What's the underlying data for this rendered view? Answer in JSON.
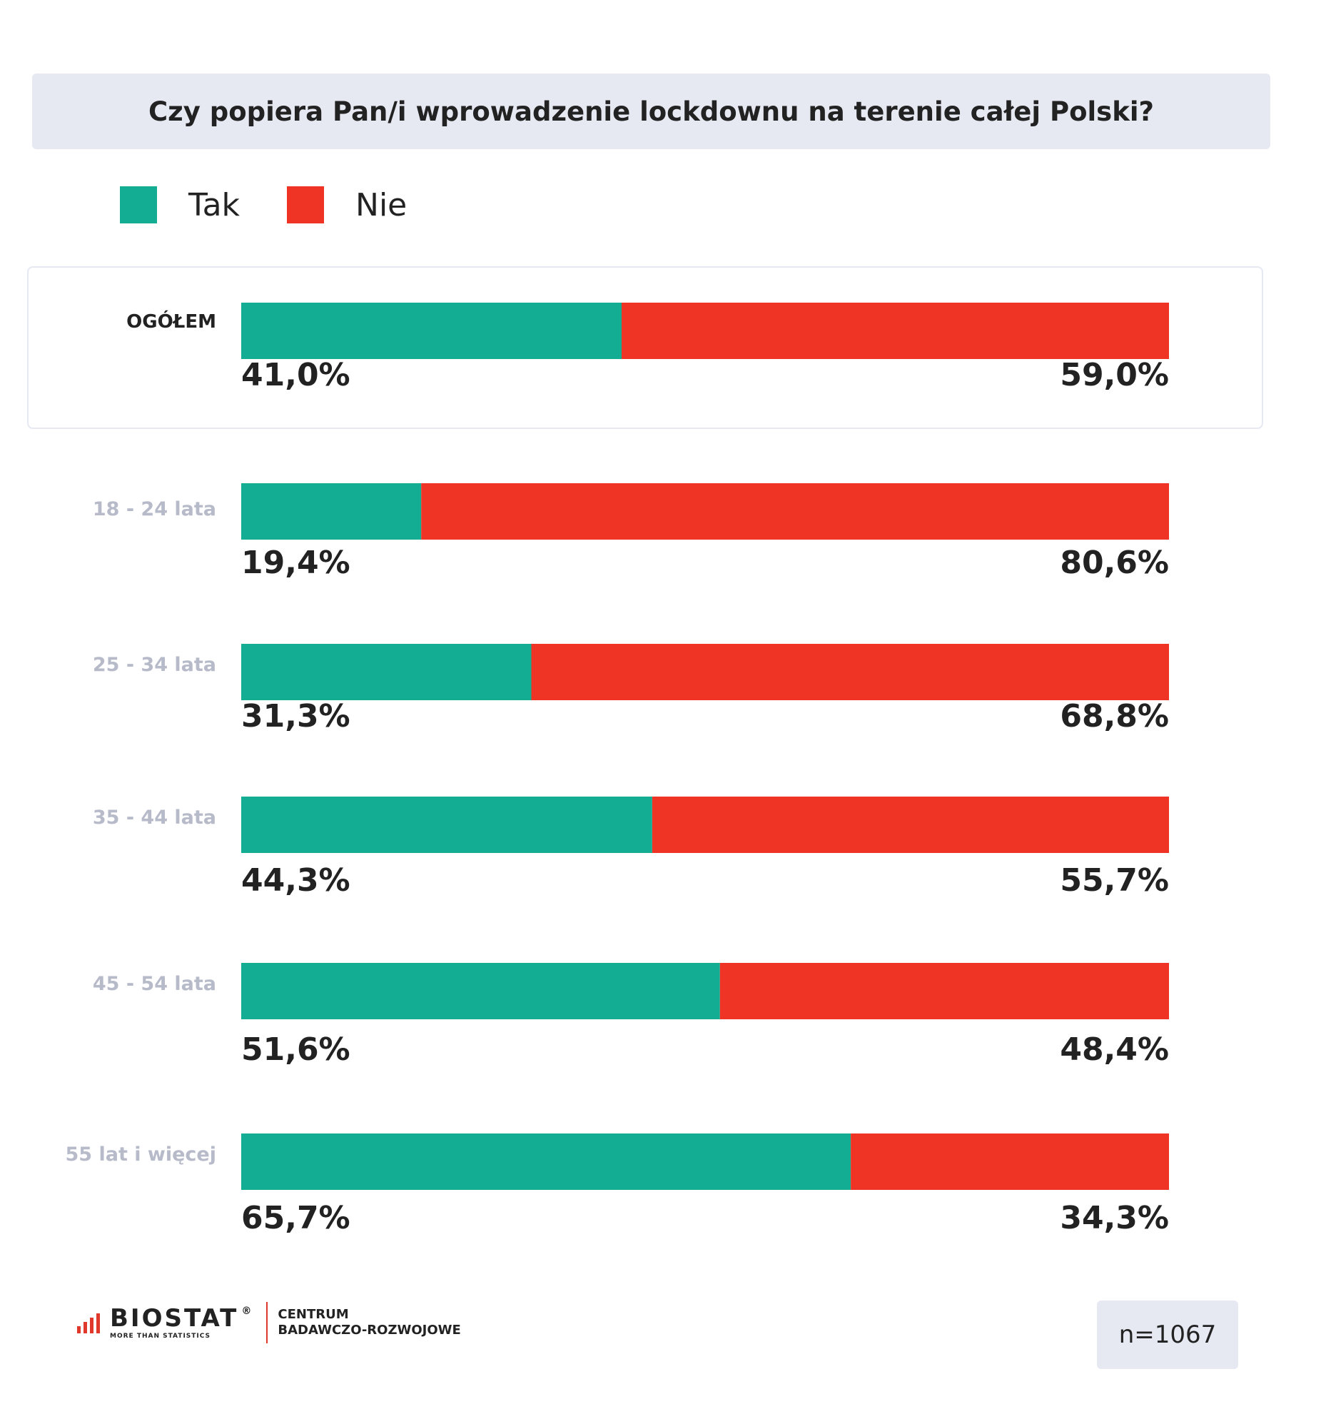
{
  "colors": {
    "tak": "#12ad93",
    "nie": "#ef3426",
    "label_total": "#222222",
    "label_group": "#b6bac9",
    "value_text": "#222222"
  },
  "legend": {
    "tak": "Tak",
    "nie": "Nie"
  },
  "chart_data": {
    "type": "bar",
    "stacked": true,
    "orientation": "horizontal",
    "title": "Czy popiera Pan/i wprowadzenie lockdownu na terenie całej Polski?",
    "categories": [
      "OGÓŁEM",
      "18 - 24 lata",
      "25 - 34 lata",
      "35 - 44 lata",
      "45 - 54 lata",
      "55 lat i więcej"
    ],
    "series": [
      {
        "name": "Tak",
        "values": [
          41.0,
          19.4,
          31.3,
          44.3,
          51.6,
          65.7
        ],
        "labels": [
          "41,0%",
          "19,4%",
          "31,3%",
          "44,3%",
          "51,6%",
          "65,7%"
        ]
      },
      {
        "name": "Nie",
        "values": [
          59.0,
          80.6,
          68.8,
          55.7,
          48.4,
          34.3
        ],
        "labels": [
          "59,0%",
          "80,6%",
          "68,8%",
          "55,7%",
          "48,4%",
          "34,3%"
        ]
      }
    ]
  },
  "footer": {
    "logo": "BIOSTAT",
    "logo_reg": "®",
    "logo_tagline": "MORE THAN STATISTICS",
    "unit_line1": "CENTRUM",
    "unit_line2": "BADAWCZO-ROZWOJOWE",
    "sample": "n=1067"
  }
}
